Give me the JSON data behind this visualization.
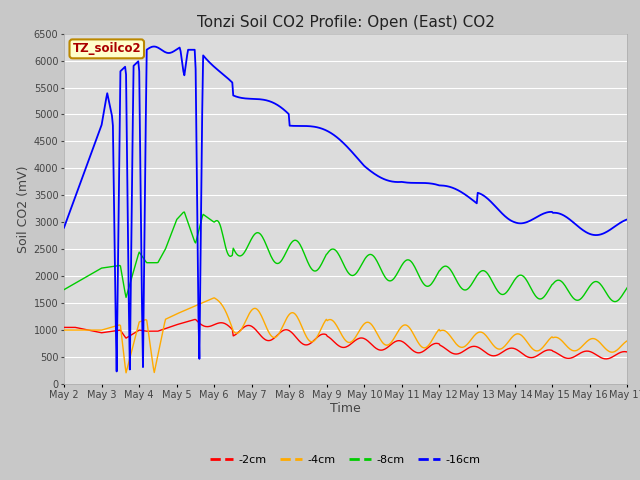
{
  "title": "Tonzi Soil CO2 Profile: Open (East) CO2",
  "xlabel": "Time",
  "ylabel": "Soil CO2 (mV)",
  "watermark": "TZ_soilco2",
  "ylim": [
    0,
    6500
  ],
  "xlim": [
    0,
    15
  ],
  "legend": [
    "-2cm",
    "-4cm",
    "-8cm",
    "-16cm"
  ],
  "legend_colors": [
    "#ff0000",
    "#ffaa00",
    "#00cc00",
    "#0000ff"
  ],
  "line_colors": [
    "#ff0000",
    "#ffaa00",
    "#00cc00",
    "#0000ff"
  ],
  "fig_bg": "#c8c8c8",
  "plot_bg": "#dcdcdc",
  "grid_color": "#ffffff",
  "xtick_labels": [
    "May 2",
    "May 3",
    "May 4",
    "May 5",
    "May 6",
    "May 7",
    "May 8",
    "May 9",
    "May 10",
    "May 11",
    "May 12",
    "May 13",
    "May 14",
    "May 15",
    "May 16",
    "May 17"
  ],
  "yticks": [
    0,
    500,
    1000,
    1500,
    2000,
    2500,
    3000,
    3500,
    4000,
    4500,
    5000,
    5500,
    6000,
    6500
  ],
  "title_fontsize": 11,
  "axis_label_fontsize": 9,
  "tick_fontsize": 7,
  "legend_fontsize": 8
}
